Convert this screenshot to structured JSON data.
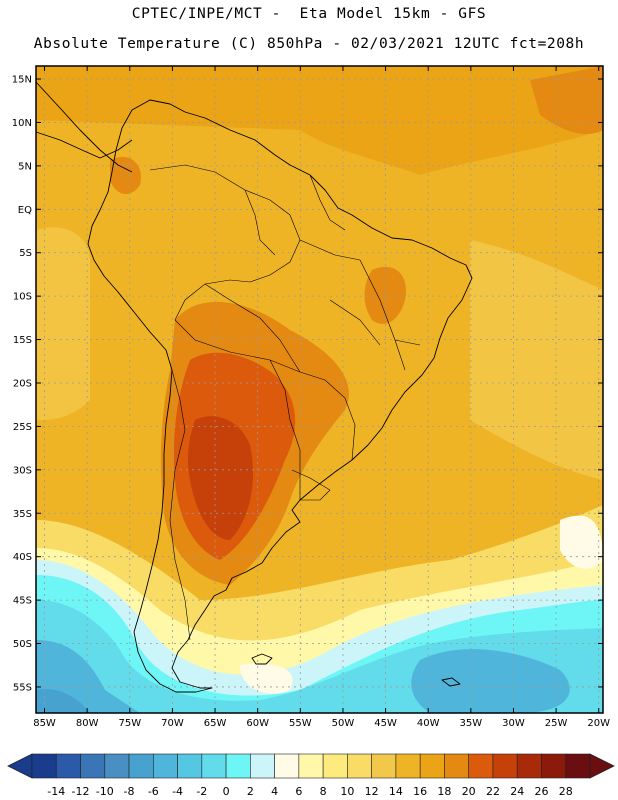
{
  "title": {
    "line1": "CPTEC/INPE/MCT -  Eta Model 15km - GFS",
    "line2": "Absolute Temperature (C) 850hPa - 02/03/2021 12UTC fct=208h"
  },
  "map": {
    "lat_ticks": [
      "15N",
      "10N",
      "5N",
      "EQ",
      "5S",
      "10S",
      "15S",
      "20S",
      "25S",
      "30S",
      "35S",
      "40S",
      "45S",
      "50S",
      "55S"
    ],
    "lon_ticks": [
      "85W",
      "80W",
      "75W",
      "70W",
      "65W",
      "60W",
      "55W",
      "50W",
      "45W",
      "40W",
      "35W",
      "30W",
      "25W",
      "20W"
    ],
    "lat_range": [
      -58,
      16.5
    ],
    "lon_range": [
      -86,
      -19.5
    ]
  },
  "colorbar": {
    "labels": [
      "-14",
      "-12",
      "-10",
      "-8",
      "-6",
      "-4",
      "-2",
      "0",
      "2",
      "4",
      "6",
      "8",
      "10",
      "12",
      "14",
      "16",
      "18",
      "20",
      "22",
      "24",
      "26",
      "28"
    ],
    "colors": [
      "#1a3c8c",
      "#2b5aa8",
      "#3a75b8",
      "#4a8fc4",
      "#47a2cf",
      "#4fb5da",
      "#55c7e3",
      "#62dbeb",
      "#6ef5f5",
      "#ccf5fa",
      "#fffbe6",
      "#fff8a8",
      "#fdeb7e",
      "#f8dc66",
      "#f2c84a",
      "#eeb425",
      "#eba415",
      "#e48a12",
      "#dc5a0c",
      "#c6400a",
      "#a82a08",
      "#8c1a0a",
      "#6a0e12"
    ]
  }
}
